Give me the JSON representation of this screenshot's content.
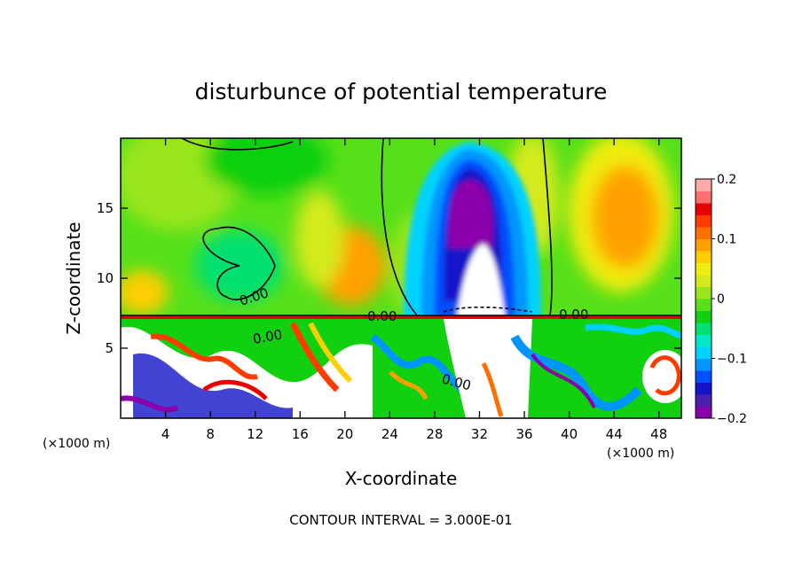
{
  "chart_data": {
    "type": "heatmap",
    "title": "disturbunce of potential temperature",
    "xlabel": "X-coordinate",
    "ylabel": "Z-coordinate",
    "x_unit_label": "(×1000 m)",
    "x_unit_label_left": "(×1000 m)",
    "xlim": [
      0,
      50
    ],
    "ylim": [
      0,
      20
    ],
    "x_ticks": [
      4,
      8,
      12,
      16,
      20,
      24,
      28,
      32,
      36,
      40,
      44,
      48
    ],
    "y_ticks": [
      5,
      10,
      15
    ],
    "contour_interval_text": "CONTOUR INTERVAL = 3.000E-01",
    "contour_labels": [
      "0.00",
      "0.00",
      "0.00",
      "0.00",
      "0.00"
    ],
    "colorbar": {
      "range": [
        -0.2,
        0.2
      ],
      "tick_values": [
        0.2,
        0.1,
        0,
        -0.1,
        -0.2
      ],
      "tick_labels": [
        "0.2",
        "0.1",
        "0",
        "−0.1",
        "−0.2"
      ],
      "colors": [
        "#8a00aa",
        "#4b1fb0",
        "#1414c8",
        "#0050ff",
        "#0096ff",
        "#00d2ff",
        "#00e8c8",
        "#00e070",
        "#10d010",
        "#55e01a",
        "#9ae61e",
        "#d4ea1c",
        "#f0ec10",
        "#ffce00",
        "#ffa000",
        "#ff6e00",
        "#ff3c00",
        "#e80000",
        "#ff6f6f",
        "#ffaaaa"
      ]
    }
  }
}
